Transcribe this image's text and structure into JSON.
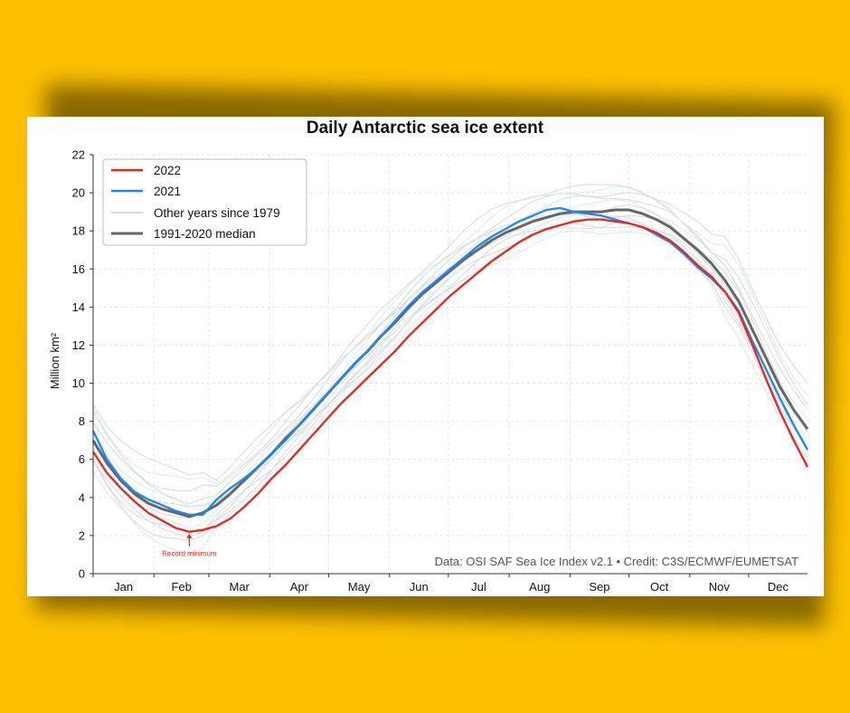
{
  "chart_data": {
    "type": "line",
    "title": "Daily Antarctic sea ice extent",
    "ylabel": "Million km²",
    "xlabel": "",
    "ylim": [
      0,
      22
    ],
    "yticks": [
      0,
      2,
      4,
      6,
      8,
      10,
      12,
      14,
      16,
      18,
      20,
      22
    ],
    "months": [
      "Jan",
      "Feb",
      "Mar",
      "Apr",
      "May",
      "Jun",
      "Jul",
      "Aug",
      "Sep",
      "Oct",
      "Nov",
      "Dec"
    ],
    "grid": true,
    "legend_position": "top-left",
    "x_unit": "day of year",
    "series": [
      {
        "name": "2022",
        "color": "#e8261e",
        "x": [
          1,
          8,
          15,
          22,
          29,
          36,
          43,
          50,
          57,
          64,
          71,
          78,
          85,
          92,
          99,
          106,
          113,
          120,
          127,
          134,
          141,
          148,
          155,
          162,
          169,
          176,
          183,
          190,
          197,
          204,
          211,
          218,
          225,
          232,
          239,
          246,
          253,
          260,
          267,
          274,
          281,
          288,
          295,
          302,
          309,
          316,
          323,
          330,
          337,
          344,
          351,
          358,
          365
        ],
        "values": [
          6.4,
          5.3,
          4.5,
          3.8,
          3.2,
          2.8,
          2.4,
          2.2,
          2.3,
          2.5,
          2.9,
          3.5,
          4.2,
          5.0,
          5.7,
          6.5,
          7.3,
          8.1,
          8.9,
          9.6,
          10.3,
          11.0,
          11.7,
          12.5,
          13.2,
          13.9,
          14.6,
          15.2,
          15.8,
          16.4,
          16.9,
          17.4,
          17.8,
          18.1,
          18.3,
          18.5,
          18.6,
          18.6,
          18.5,
          18.4,
          18.2,
          17.9,
          17.5,
          16.9,
          16.2,
          15.6,
          14.8,
          13.7,
          12.0,
          10.2,
          8.5,
          7.0,
          5.6
        ]
      },
      {
        "name": "2021",
        "color": "#1e86f0",
        "x": [
          1,
          8,
          15,
          22,
          29,
          36,
          43,
          50,
          57,
          64,
          71,
          78,
          85,
          92,
          99,
          106,
          113,
          120,
          127,
          134,
          141,
          148,
          155,
          162,
          169,
          176,
          183,
          190,
          197,
          204,
          211,
          218,
          225,
          232,
          239,
          246,
          253,
          260,
          267,
          274,
          281,
          288,
          295,
          302,
          309,
          316,
          323,
          330,
          337,
          344,
          351,
          358,
          365
        ],
        "values": [
          7.5,
          6.0,
          5.0,
          4.3,
          3.9,
          3.6,
          3.3,
          3.1,
          3.1,
          3.9,
          4.5,
          5.0,
          5.6,
          6.3,
          7.0,
          7.8,
          8.6,
          9.4,
          10.2,
          11.0,
          11.7,
          12.5,
          13.3,
          14.1,
          14.8,
          15.4,
          16.0,
          16.6,
          17.2,
          17.7,
          18.1,
          18.5,
          18.8,
          19.1,
          19.2,
          19.0,
          18.9,
          18.8,
          18.6,
          18.4,
          18.2,
          17.8,
          17.4,
          16.8,
          16.1,
          15.5,
          14.8,
          13.8,
          12.2,
          10.7,
          9.2,
          7.8,
          6.5
        ]
      },
      {
        "name": "Other years since 1979",
        "color": "#d9d9d9",
        "values": []
      },
      {
        "name": "1991-2020 median",
        "color": "#666666",
        "x": [
          1,
          8,
          15,
          22,
          29,
          36,
          43,
          50,
          57,
          64,
          71,
          78,
          85,
          92,
          99,
          106,
          113,
          120,
          127,
          134,
          141,
          148,
          155,
          162,
          169,
          176,
          183,
          190,
          197,
          204,
          211,
          218,
          225,
          232,
          239,
          246,
          253,
          260,
          267,
          274,
          281,
          288,
          295,
          302,
          309,
          316,
          323,
          330,
          337,
          344,
          351,
          358,
          365
        ],
        "values": [
          7.0,
          5.8,
          4.9,
          4.2,
          3.7,
          3.4,
          3.2,
          3.0,
          3.2,
          3.6,
          4.2,
          4.9,
          5.6,
          6.3,
          7.1,
          7.8,
          8.6,
          9.4,
          10.2,
          11.0,
          11.7,
          12.5,
          13.2,
          14.0,
          14.7,
          15.3,
          15.9,
          16.5,
          17.0,
          17.5,
          17.9,
          18.2,
          18.5,
          18.7,
          18.9,
          19.0,
          19.0,
          19.0,
          19.1,
          19.1,
          18.9,
          18.6,
          18.2,
          17.6,
          17.0,
          16.3,
          15.4,
          14.3,
          12.8,
          11.3,
          9.8,
          8.6,
          7.6
        ]
      }
    ],
    "annotations": [
      {
        "text": "Record minimum",
        "x": 50,
        "y": 2.2
      }
    ],
    "credit": "Data: OSI SAF Sea Ice Index v2.1 • Credit: C3S/ECMWF/EUMETSAT"
  }
}
